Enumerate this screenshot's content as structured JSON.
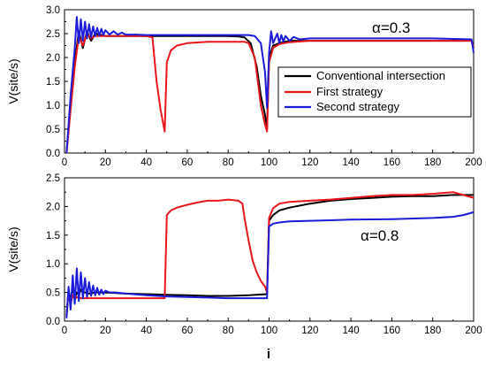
{
  "chart_data": [
    {
      "type": "line",
      "annotation": "α=0.3",
      "ylabel": "V(site/s)",
      "xlabel": "",
      "xlim": [
        0,
        200
      ],
      "ylim": [
        0.0,
        3.0
      ],
      "xticks": [
        0,
        20,
        40,
        60,
        80,
        100,
        120,
        140,
        160,
        180,
        200
      ],
      "yticks": [
        0.0,
        0.5,
        1.0,
        1.5,
        2.0,
        2.5,
        3.0
      ],
      "ytick_labels": [
        "0.0",
        "0.5",
        "1.0",
        "1.5",
        "2.0",
        "2.5",
        "3.0"
      ],
      "legend_position": "right-middle",
      "series": [
        {
          "name": "Conventional intersection",
          "color": "#000000",
          "x": [
            1,
            3,
            5,
            7,
            9,
            11,
            13,
            15,
            20,
            30,
            40,
            50,
            60,
            70,
            80,
            85,
            88,
            91,
            94,
            96,
            98,
            99,
            100,
            102,
            105,
            110,
            120,
            140,
            160,
            180,
            199,
            200
          ],
          "y": [
            0.0,
            1.0,
            1.9,
            2.55,
            2.2,
            2.55,
            2.35,
            2.5,
            2.45,
            2.45,
            2.45,
            2.45,
            2.45,
            2.45,
            2.45,
            2.44,
            2.42,
            2.3,
            1.8,
            1.2,
            0.8,
            0.5,
            2.0,
            2.25,
            2.3,
            2.35,
            2.35,
            2.35,
            2.35,
            2.35,
            2.35,
            2.2
          ]
        },
        {
          "name": "First strategy",
          "color": "#e8161b",
          "x": [
            1,
            3,
            5,
            7,
            9,
            11,
            13,
            15,
            20,
            30,
            40,
            43,
            45,
            47,
            49,
            50,
            52,
            55,
            60,
            70,
            80,
            88,
            90,
            93,
            96,
            98,
            99,
            100,
            102,
            105,
            110,
            120,
            140,
            160,
            180,
            199,
            200
          ],
          "y": [
            0.0,
            0.9,
            1.8,
            2.45,
            2.25,
            2.5,
            2.4,
            2.45,
            2.45,
            2.45,
            2.45,
            2.42,
            1.5,
            0.9,
            0.45,
            1.9,
            2.15,
            2.25,
            2.3,
            2.33,
            2.33,
            2.33,
            2.3,
            2.0,
            1.0,
            0.6,
            0.45,
            1.9,
            2.2,
            2.28,
            2.32,
            2.35,
            2.35,
            2.35,
            2.35,
            2.35,
            2.2
          ]
        },
        {
          "name": "Second strategy",
          "color": "#1c1cd8",
          "x": [
            1,
            3,
            5,
            6,
            7,
            8,
            9,
            10,
            11,
            12,
            13,
            14,
            15,
            16,
            17,
            18,
            19,
            20,
            22,
            24,
            26,
            28,
            30,
            35,
            40,
            50,
            60,
            70,
            80,
            90,
            93,
            96,
            98,
            99,
            100,
            101,
            102,
            104,
            105,
            106,
            107,
            108,
            110,
            112,
            115,
            120,
            125,
            130,
            140,
            160,
            180,
            199,
            200
          ],
          "y": [
            0.0,
            1.2,
            2.2,
            2.85,
            2.3,
            2.8,
            2.35,
            2.75,
            2.4,
            2.7,
            2.42,
            2.65,
            2.45,
            2.62,
            2.46,
            2.6,
            2.47,
            2.57,
            2.48,
            2.55,
            2.48,
            2.52,
            2.48,
            2.48,
            2.47,
            2.47,
            2.47,
            2.47,
            2.47,
            2.47,
            2.45,
            2.3,
            1.7,
            0.95,
            2.1,
            2.55,
            2.3,
            2.5,
            2.3,
            2.47,
            2.33,
            2.45,
            2.35,
            2.43,
            2.38,
            2.4,
            2.4,
            2.4,
            2.4,
            2.4,
            2.4,
            2.38,
            2.1
          ]
        }
      ]
    },
    {
      "type": "line",
      "annotation": "α=0.8",
      "ylabel": "V(site/s)",
      "xlabel": "i",
      "xlim": [
        0,
        200
      ],
      "ylim": [
        0.0,
        2.5
      ],
      "xticks": [
        0,
        20,
        40,
        60,
        80,
        100,
        120,
        140,
        160,
        180,
        200
      ],
      "yticks": [
        0.0,
        0.5,
        1.0,
        1.5,
        2.0,
        2.5
      ],
      "ytick_labels": [
        "0.0",
        "0.5",
        "1.0",
        "1.5",
        "2.0",
        "2.5"
      ],
      "series": [
        {
          "name": "Conventional intersection",
          "color": "#000000",
          "x": [
            1,
            2,
            3,
            4,
            5,
            6,
            7,
            8,
            9,
            10,
            12,
            15,
            20,
            30,
            40,
            50,
            60,
            70,
            80,
            90,
            99,
            100,
            102,
            105,
            110,
            120,
            130,
            140,
            150,
            160,
            170,
            180,
            190,
            200
          ],
          "y": [
            0.1,
            0.55,
            0.35,
            0.6,
            0.4,
            0.5,
            0.45,
            0.55,
            0.5,
            0.5,
            0.48,
            0.5,
            0.5,
            0.48,
            0.47,
            0.46,
            0.45,
            0.44,
            0.44,
            0.45,
            0.47,
            1.75,
            1.85,
            1.93,
            1.98,
            2.05,
            2.1,
            2.13,
            2.15,
            2.17,
            2.18,
            2.18,
            2.2,
            2.2
          ]
        },
        {
          "name": "First strategy",
          "color": "#e8161b",
          "x": [
            1,
            2,
            3,
            4,
            5,
            6,
            8,
            10,
            20,
            30,
            40,
            49,
            50,
            52,
            55,
            60,
            65,
            70,
            75,
            80,
            85,
            87,
            88,
            90,
            92,
            94,
            96,
            98,
            99,
            100,
            102,
            105,
            110,
            120,
            130,
            140,
            150,
            160,
            170,
            180,
            190,
            200
          ],
          "y": [
            0.1,
            0.5,
            0.3,
            0.45,
            0.38,
            0.42,
            0.4,
            0.4,
            0.4,
            0.4,
            0.4,
            0.4,
            1.85,
            1.93,
            1.98,
            2.03,
            2.07,
            2.1,
            2.1,
            2.12,
            2.1,
            2.05,
            1.8,
            1.4,
            1.05,
            0.85,
            0.7,
            0.6,
            0.5,
            1.8,
            1.97,
            2.05,
            2.08,
            2.1,
            2.12,
            2.15,
            2.18,
            2.2,
            2.2,
            2.22,
            2.25,
            2.15
          ]
        },
        {
          "name": "Second strategy",
          "color": "#1c1cd8",
          "x": [
            1,
            2,
            3,
            4,
            5,
            6,
            7,
            8,
            9,
            10,
            11,
            12,
            13,
            14,
            15,
            16,
            17,
            18,
            19,
            20,
            22,
            25,
            30,
            40,
            50,
            60,
            70,
            80,
            90,
            99,
            100,
            102,
            105,
            110,
            120,
            140,
            160,
            180,
            190,
            195,
            200
          ],
          "y": [
            0.05,
            0.6,
            0.2,
            0.8,
            0.3,
            0.92,
            0.35,
            0.85,
            0.4,
            0.75,
            0.42,
            0.68,
            0.44,
            0.62,
            0.45,
            0.58,
            0.46,
            0.55,
            0.47,
            0.53,
            0.5,
            0.5,
            0.48,
            0.45,
            0.43,
            0.42,
            0.41,
            0.4,
            0.4,
            0.4,
            1.65,
            1.7,
            1.72,
            1.74,
            1.75,
            1.77,
            1.78,
            1.8,
            1.82,
            1.85,
            1.9
          ]
        }
      ]
    }
  ]
}
